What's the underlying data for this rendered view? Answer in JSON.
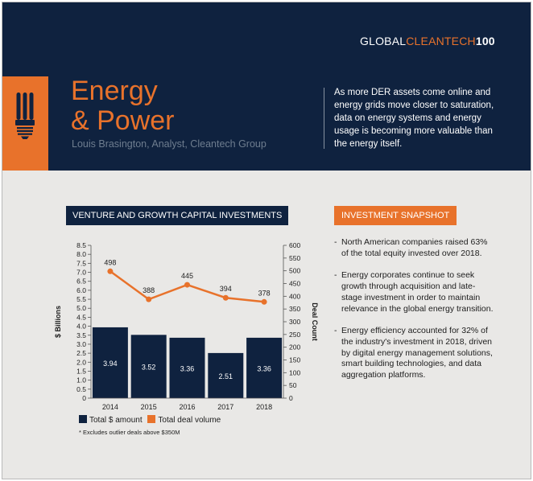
{
  "brand": {
    "part1": "GLOBAL",
    "part2": "CLEANTECH",
    "part3": "100"
  },
  "icon": "light-bulb-icon",
  "title": {
    "line1": "Energy",
    "line2": "& Power"
  },
  "author": "Louis Brasington, Analyst, Cleantech Group",
  "intro": "As more DER assets come online and energy grids move closer to saturation, data on energy systems and energy usage is becoming more valuable than the energy itself.",
  "sections": {
    "venture_label": "VENTURE AND GROWTH CAPITAL INVESTMENTS",
    "snapshot_label": "INVESTMENT SNAPSHOT"
  },
  "chart_data": {
    "type": "bar",
    "categories": [
      "2014",
      "2015",
      "2016",
      "2017",
      "2018"
    ],
    "series": [
      {
        "name": "Total $ amount",
        "type": "bar",
        "axis": "left",
        "values": [
          3.94,
          3.52,
          3.36,
          2.51,
          3.36
        ],
        "color": "#0f223f"
      },
      {
        "name": "Total deal volume",
        "type": "line",
        "axis": "right",
        "values": [
          498,
          388,
          445,
          394,
          378
        ],
        "color": "#e8722b"
      }
    ],
    "ylabel": "$ Billions",
    "y2label": "Deal Count",
    "ylim": [
      0,
      8.5
    ],
    "y2lim": [
      0,
      600
    ],
    "yticks": [
      "0",
      "0.5",
      "1.0",
      "1.5",
      "2.0",
      "2.5",
      "3.0",
      "3.5",
      "4.0",
      "4.5",
      "5.0",
      "5.5",
      "6.0",
      "6.5",
      "7.0",
      "7.5",
      "8.0",
      "8.5"
    ],
    "y2ticks": [
      "0",
      "50",
      "100",
      "150",
      "200",
      "250",
      "300",
      "350",
      "400",
      "450",
      "500",
      "550",
      "600"
    ],
    "legend_position": "bottom-left",
    "grid": false
  },
  "legend": {
    "bar": "Total $ amount",
    "line": "Total deal volume"
  },
  "note": "* Excludes outlier deals above $350M",
  "bullets": [
    "North American companies raised 63% of the total equity invested over 2018.",
    "Energy corporates continue to seek growth through acquisition and late-stage investment in order to maintain relevance in the global energy transition.",
    "Energy efficiency accounted for 32% of the industry's investment in 2018, driven by digital energy management solutions, smart building technologies, and data aggregation platforms."
  ],
  "colors": {
    "navy": "#0f223f",
    "orange": "#e8722b",
    "background": "#e9e8e6"
  }
}
